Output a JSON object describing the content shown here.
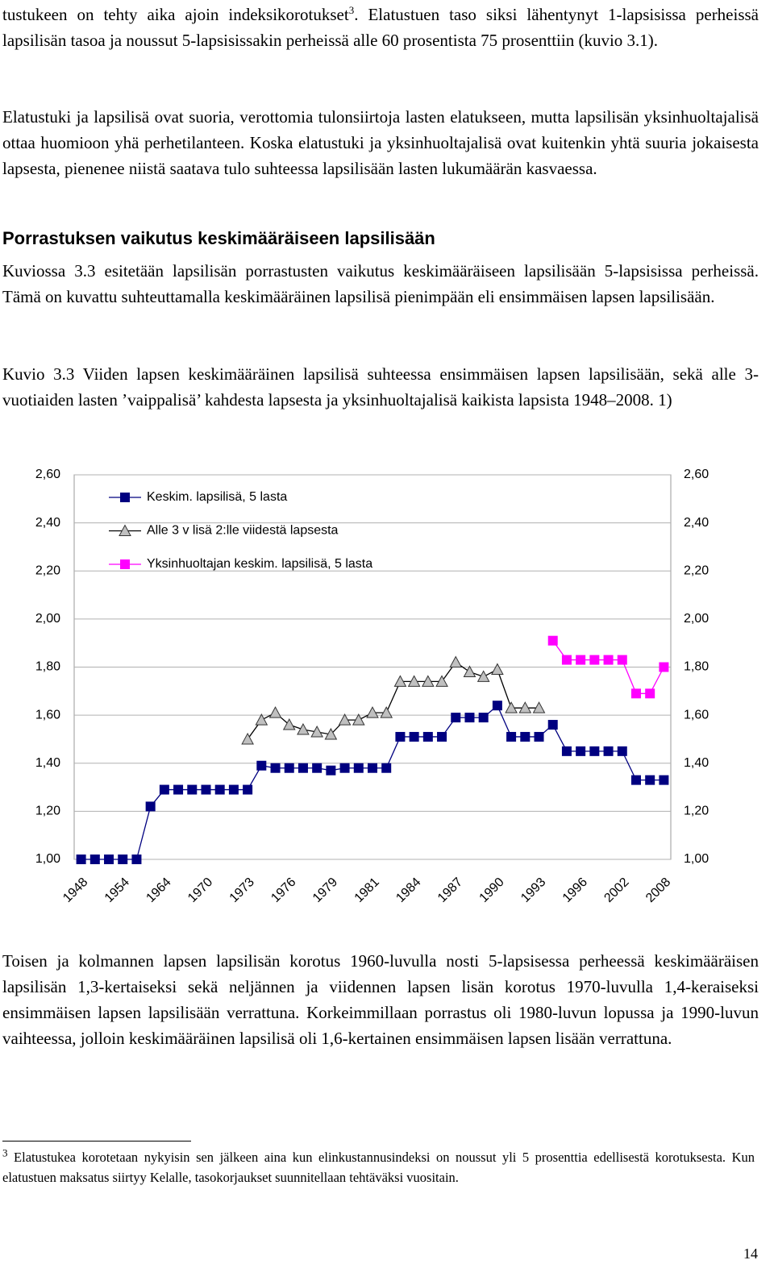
{
  "body": {
    "paragraph_1": {
      "text_before": "tustukeen on tehty aika ajoin indeksikorotukset",
      "footnote_ref": "3",
      "text_after": ". Elatustuen taso siksi lähentynyt 1-lapsisissa perheissä lapsilisän tasoa ja noussut 5-lapsisissakin perheissä alle 60 prosentista 75 prosenttiin (kuvio 3.1)."
    },
    "paragraph_2": "Elatustuki ja lapsilisä ovat suoria, verottomia tulonsiirtoja lasten elatukseen, mutta lapsilisän yksinhuoltajalisä ottaa huomioon yhä perhetilanteen. Koska elatustuki ja yksinhuoltajalisä ovat kuitenkin yhtä suuria jokaisesta lapsesta, pienenee niistä saatava tulo suhteessa lapsilisään lasten lukumäärän kasvaessa.",
    "heading": "Porrastuksen vaikutus keskimääräiseen lapsilisään",
    "paragraph_3": "Kuviossa 3.3 esitetään lapsilisän porrastusten vaikutus keskimääräiseen lapsilisään 5-lapsisissa perheissä. Tämä on kuvattu suhteuttamalla keskimääräinen lapsilisä pienimpään eli ensimmäisen lapsen lapsilisään.",
    "figure_caption": "Kuvio 3.3 Viiden lapsen keskimääräinen lapsilisä suhteessa ensimmäisen lapsen lapsilisään, sekä alle 3-vuotiaiden lasten ’vaippalisä’ kahdesta lapsesta ja yksinhuoltajalisä kaikista lapsista 1948–2008. 1)",
    "paragraph_4": "Toisen ja kolmannen lapsen lapsilisän korotus 1960-luvulla nosti 5-lapsisessa perheessä keskimääräisen lapsilisän 1,3-kertaiseksi sekä neljännen ja viidennen lapsen lisän korotus 1970-luvulla 1,4-keraiseksi ensimmäisen lapsen lapsilisään verrattuna. Korkeimmillaan porrastus oli 1980-luvun lopussa ja 1990-luvun vaihteessa, jolloin keskimääräinen lapsilisä oli 1,6-kertainen ensimmäisen lapsen lisään verrattuna."
  },
  "footnote": {
    "number": "3",
    "text": "Elatustukea korotetaan nykyisin sen jälkeen aina kun elinkustannusindeksi on noussut yli 5 prosenttia edellisestä korotuksesta. Kun elatustuen maksatus siirtyy Kelalle,  tasokorjaukset suunnitellaan tehtäväksi vuositain."
  },
  "page_number": "14",
  "chart_data": {
    "type": "line",
    "categories": [
      "1948",
      null,
      null,
      "1954",
      null,
      null,
      "1964",
      null,
      null,
      "1970",
      null,
      null,
      "1973",
      null,
      null,
      "1976",
      null,
      null,
      "1979",
      null,
      null,
      "1981",
      null,
      null,
      "1984",
      null,
      null,
      "1987",
      null,
      null,
      "1990",
      null,
      null,
      "1993",
      null,
      null,
      "1996",
      null,
      null,
      "2002",
      null,
      null,
      "2008"
    ],
    "series": [
      {
        "name": "Keskim. lapsilisä, 5 lasta",
        "color": "#000080",
        "line_color": "#000080",
        "marker": "square",
        "values": [
          1.0,
          1.0,
          1.0,
          1.0,
          1.0,
          1.22,
          1.29,
          1.29,
          1.29,
          1.29,
          1.29,
          1.29,
          1.29,
          1.39,
          1.38,
          1.38,
          1.38,
          1.38,
          1.37,
          1.38,
          1.38,
          1.38,
          1.38,
          1.51,
          1.51,
          1.51,
          1.51,
          1.59,
          1.59,
          1.59,
          1.64,
          1.51,
          1.51,
          1.51,
          1.56,
          1.45,
          1.45,
          1.45,
          1.45,
          1.45,
          1.33,
          1.33,
          1.33
        ]
      },
      {
        "name": "Alle 3 v lisä 2:lle viidestä lapsesta",
        "color": "#c0c0c0",
        "line_color": "#000000",
        "marker": "triangle",
        "values": [
          null,
          null,
          null,
          null,
          null,
          null,
          null,
          null,
          null,
          null,
          null,
          null,
          1.5,
          1.58,
          1.61,
          1.56,
          1.54,
          1.53,
          1.52,
          1.58,
          1.58,
          1.61,
          1.61,
          1.74,
          1.74,
          1.74,
          1.74,
          1.82,
          1.78,
          1.76,
          1.79,
          1.63,
          1.63,
          1.63,
          null,
          null,
          null,
          null,
          null,
          null,
          null,
          null,
          null
        ]
      },
      {
        "name": "Yksinhuoltajan keskim. lapsilisä, 5 lasta",
        "color": "#ff00ff",
        "line_color": "#ff00ff",
        "marker": "square",
        "values": [
          null,
          null,
          null,
          null,
          null,
          null,
          null,
          null,
          null,
          null,
          null,
          null,
          null,
          null,
          null,
          null,
          null,
          null,
          null,
          null,
          null,
          null,
          null,
          null,
          null,
          null,
          null,
          null,
          null,
          null,
          null,
          null,
          null,
          null,
          1.91,
          1.83,
          1.83,
          1.83,
          1.83,
          1.83,
          1.69,
          1.69,
          1.8
        ]
      }
    ],
    "ylim": [
      1.0,
      2.6
    ],
    "yticks": [
      {
        "value": 1.0,
        "label": "1,00"
      },
      {
        "value": 1.2,
        "label": "1,20"
      },
      {
        "value": 1.4,
        "label": "1,40"
      },
      {
        "value": 1.6,
        "label": "1,60"
      },
      {
        "value": 1.8,
        "label": "1,80"
      },
      {
        "value": 2.0,
        "label": "2,00"
      },
      {
        "value": 2.2,
        "label": "2,20"
      },
      {
        "value": 2.4,
        "label": "2,40"
      },
      {
        "value": 2.6,
        "label": "2,60"
      }
    ],
    "y2lim": [
      1.0,
      2.6
    ],
    "y2ticks": [
      {
        "value": 1.0,
        "label": "1,00"
      },
      {
        "value": 1.2,
        "label": "1,20"
      },
      {
        "value": 1.4,
        "label": "1,40"
      },
      {
        "value": 1.6,
        "label": "1,60"
      },
      {
        "value": 1.8,
        "label": "1,80"
      },
      {
        "value": 2.0,
        "label": "2,00"
      },
      {
        "value": 2.2,
        "label": "2,20"
      },
      {
        "value": 2.4,
        "label": "2,40"
      },
      {
        "value": 2.6,
        "label": "2,60"
      }
    ],
    "grid": true,
    "legend": "top-left"
  }
}
